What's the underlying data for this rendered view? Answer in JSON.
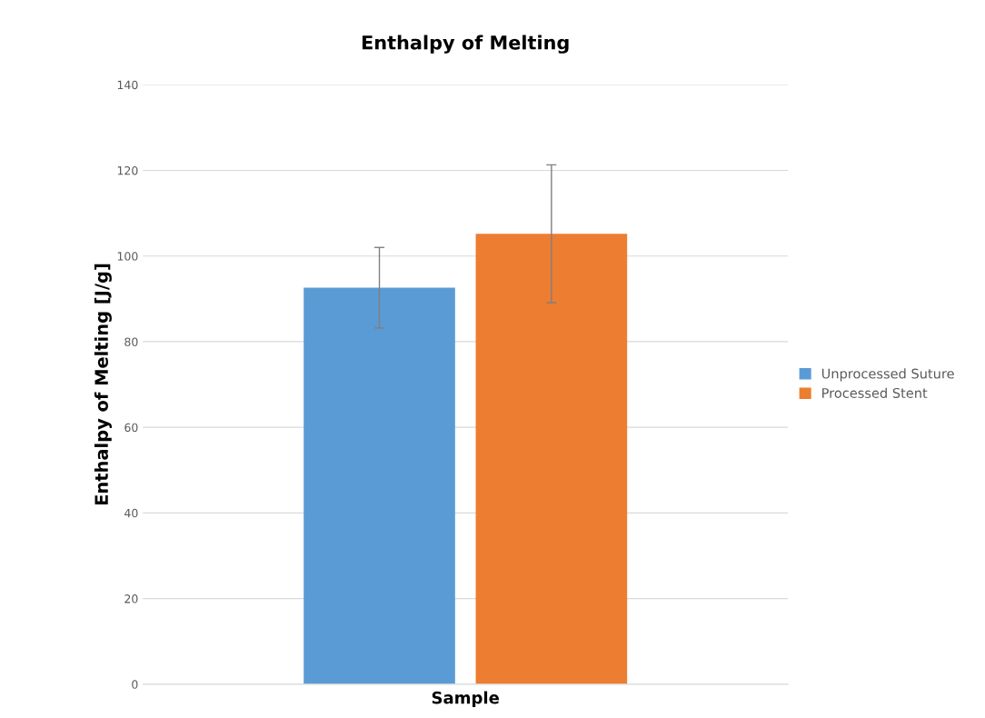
{
  "chart_data": {
    "type": "bar",
    "title": "Enthalpy of Melting",
    "xlabel": "Sample",
    "ylabel": "Enthalpy of Melting [J/g]",
    "categories": [
      null
    ],
    "series": [
      {
        "name": "Unprocessed Suture",
        "color": "#5b9bd5",
        "values": [
          92.6
        ],
        "errors": [
          9.4
        ]
      },
      {
        "name": "Processed Stent",
        "color": "#ed7d31",
        "values": [
          105.2
        ],
        "errors": [
          16.1
        ]
      }
    ],
    "ylim": [
      0,
      140
    ],
    "yticks": [
      0,
      20,
      40,
      60,
      80,
      100,
      120,
      140
    ],
    "grid": "y",
    "legend": "right"
  }
}
